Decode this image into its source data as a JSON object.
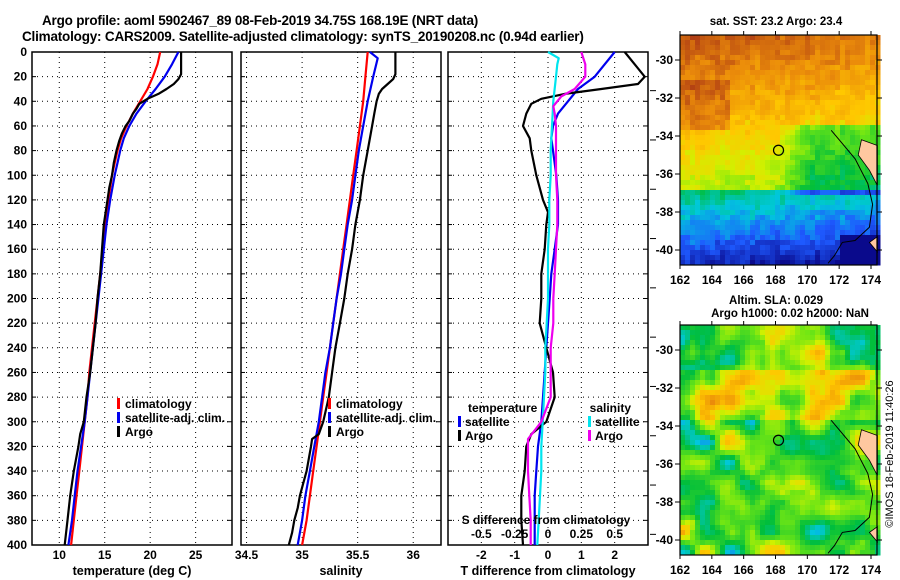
{
  "header": {
    "title_line1": "Argo profile: aoml 5902467_89 08-Feb-2019 34.75S 168.19E (NRT data)",
    "title_line2": "Climatology: CARS2009. Satellite-adjusted climatology: synTS_20190208.nc (0.94d earlier)"
  },
  "colors": {
    "climatology": "#ff0000",
    "satellite": "#0000ee",
    "argo": "#000000",
    "sal_satellite": "#00e5ee",
    "sal_argo": "#ee00ee",
    "land": "#ffc8a0"
  },
  "chart_data": [
    {
      "type": "line",
      "id": "temperature",
      "xlabel": "temperature (deg C)",
      "ylabel": "",
      "xlim": [
        7,
        29
      ],
      "ylim": [
        400,
        0
      ],
      "xticks": [
        10,
        15,
        20,
        25
      ],
      "yticks": [
        0,
        20,
        40,
        60,
        80,
        100,
        120,
        140,
        160,
        180,
        200,
        220,
        240,
        260,
        280,
        300,
        320,
        340,
        360,
        380,
        400
      ],
      "grid": true,
      "legend": {
        "placement": "middle-right",
        "entries": [
          "climatology",
          "satellite-adj. clim.",
          "Argo"
        ]
      },
      "series": [
        {
          "name": "climatology",
          "color_key": "climatology",
          "pressure": [
            0,
            10,
            20,
            30,
            40,
            50,
            60,
            70,
            80,
            90,
            100,
            120,
            140,
            160,
            180,
            200,
            220,
            240,
            260,
            280,
            300,
            320,
            340,
            360,
            380,
            400
          ],
          "values": [
            21.1,
            20.8,
            20.3,
            19.7,
            18.9,
            18.1,
            17.4,
            16.8,
            16.4,
            16.1,
            15.8,
            15.4,
            15.0,
            14.8,
            14.5,
            14.2,
            13.9,
            13.6,
            13.3,
            13.1,
            12.8,
            12.5,
            12.2,
            11.9,
            11.6,
            11.3
          ]
        },
        {
          "name": "satellite-adj. clim.",
          "color_key": "satellite",
          "pressure": [
            0,
            10,
            20,
            30,
            40,
            50,
            60,
            70,
            80,
            90,
            100,
            120,
            140,
            160,
            180,
            200,
            220,
            240,
            260,
            280,
            300,
            320,
            340,
            360,
            380,
            400
          ],
          "values": [
            23.1,
            22.4,
            21.6,
            20.6,
            19.5,
            18.5,
            17.7,
            17.1,
            16.7,
            16.4,
            16.1,
            15.6,
            15.2,
            14.9,
            14.6,
            14.3,
            14.0,
            13.7,
            13.4,
            13.1,
            12.8,
            12.4,
            12.0,
            11.7,
            11.4,
            11.0
          ]
        },
        {
          "name": "Argo",
          "color_key": "argo",
          "pressure": [
            0,
            10,
            18,
            22,
            26,
            30,
            34,
            38,
            42,
            46,
            50,
            56,
            60,
            66,
            72,
            80,
            90,
            100,
            110,
            120,
            140,
            160,
            180,
            200,
            220,
            240,
            260,
            280,
            300,
            310,
            320,
            340,
            360,
            380,
            400
          ],
          "values": [
            23.4,
            23.4,
            23.4,
            23.1,
            22.6,
            21.8,
            20.9,
            19.7,
            18.8,
            18.5,
            18.1,
            17.7,
            17.3,
            16.9,
            16.6,
            16.3,
            16.0,
            15.8,
            15.5,
            15.3,
            14.9,
            14.7,
            14.5,
            14.2,
            14.0,
            13.7,
            13.4,
            13.0,
            12.7,
            12.3,
            12.1,
            11.6,
            11.2,
            10.9,
            10.6
          ]
        }
      ]
    },
    {
      "type": "line",
      "id": "salinity",
      "xlabel": "salinity",
      "ylabel": "",
      "xlim": [
        34.45,
        36.25
      ],
      "ylim": [
        400,
        0
      ],
      "xticks": [
        34.5,
        35,
        35.5,
        36
      ],
      "xtick_labels": [
        "34.5",
        "35",
        "35.5",
        "36"
      ],
      "grid": true,
      "legend": {
        "placement": "middle-right",
        "entries": [
          "climatology",
          "satellite-adj. clim.",
          "Argo"
        ]
      },
      "series": [
        {
          "name": "climatology",
          "color_key": "climatology",
          "pressure": [
            0,
            20,
            40,
            60,
            80,
            100,
            120,
            140,
            160,
            180,
            200,
            220,
            240,
            260,
            280,
            300,
            320,
            340,
            360,
            380,
            400
          ],
          "values": [
            35.59,
            35.57,
            35.55,
            35.52,
            35.49,
            35.46,
            35.43,
            35.4,
            35.37,
            35.34,
            35.31,
            35.28,
            35.25,
            35.22,
            35.19,
            35.16,
            35.13,
            35.1,
            35.07,
            35.04,
            35.0
          ]
        },
        {
          "name": "satellite-adj. clim.",
          "color_key": "satellite",
          "pressure": [
            0,
            5,
            20,
            40,
            60,
            80,
            100,
            120,
            140,
            160,
            180,
            200,
            220,
            240,
            260,
            280,
            300,
            320,
            340,
            360,
            380,
            400
          ],
          "values": [
            35.61,
            35.68,
            35.64,
            35.59,
            35.55,
            35.51,
            35.48,
            35.45,
            35.41,
            35.38,
            35.35,
            35.31,
            35.28,
            35.25,
            35.21,
            35.18,
            35.15,
            35.11,
            35.07,
            35.03,
            35.0,
            34.96
          ]
        },
        {
          "name": "Argo",
          "color_key": "argo",
          "pressure": [
            0,
            10,
            18,
            22,
            26,
            30,
            34,
            40,
            50,
            60,
            80,
            100,
            120,
            140,
            160,
            180,
            200,
            220,
            240,
            260,
            280,
            300,
            310,
            314,
            320,
            330,
            340,
            350,
            360,
            370,
            380,
            390,
            400
          ],
          "values": [
            35.84,
            35.84,
            35.84,
            35.82,
            35.77,
            35.72,
            35.69,
            35.67,
            35.65,
            35.63,
            35.59,
            35.55,
            35.52,
            35.48,
            35.45,
            35.41,
            35.38,
            35.34,
            35.3,
            35.27,
            35.24,
            35.19,
            35.15,
            35.09,
            35.08,
            35.06,
            35.04,
            35.01,
            34.98,
            34.96,
            34.93,
            34.91,
            34.88
          ]
        }
      ]
    },
    {
      "type": "line",
      "id": "difference",
      "xlabel": "T difference from climatology",
      "xlabel2": "S difference from climatology",
      "xlim": [
        -3,
        3
      ],
      "xlim2": [
        -0.75,
        0.75
      ],
      "ylim": [
        400,
        0
      ],
      "xticks": [
        -2,
        -1,
        0,
        1,
        2
      ],
      "xticks2": [
        -0.5,
        -0.25,
        0,
        0.25,
        0.5
      ],
      "xtick2_labels": [
        "-0.5",
        "-0.25",
        "0",
        "0.25",
        "0.5"
      ],
      "grid": true,
      "legend": {
        "placement": "middle",
        "temperature_title": "temperature",
        "salinity_title": "salinity",
        "entries": [
          "satellite",
          "Argo",
          "satellite",
          "Argo"
        ]
      },
      "series": [
        {
          "name": "T satellite",
          "color_key": "satellite",
          "axis": "T",
          "pressure": [
            0,
            10,
            20,
            30,
            40,
            50,
            60,
            70,
            80,
            100,
            120,
            140,
            160,
            180,
            200,
            220,
            240,
            260,
            280,
            300,
            320,
            340,
            360,
            380,
            400
          ],
          "values": [
            2.0,
            1.7,
            1.4,
            0.9,
            0.6,
            0.3,
            0.15,
            0.1,
            0.15,
            0.25,
            0.3,
            0.3,
            0.2,
            0.1,
            0.05,
            0.0,
            -0.05,
            -0.1,
            -0.15,
            -0.2,
            -0.3,
            -0.35,
            -0.4,
            -0.4,
            -0.4
          ]
        },
        {
          "name": "T Argo",
          "color_key": "argo",
          "axis": "T",
          "pressure": [
            0,
            10,
            20,
            26,
            30,
            34,
            38,
            42,
            50,
            60,
            70,
            80,
            100,
            120,
            130,
            140,
            160,
            180,
            200,
            220,
            240,
            260,
            280,
            300,
            310,
            320,
            340,
            360,
            380,
            400
          ],
          "values": [
            2.3,
            2.6,
            2.9,
            2.7,
            1.6,
            0.5,
            -0.2,
            -0.5,
            -0.65,
            -0.75,
            -0.55,
            -0.5,
            -0.35,
            -0.15,
            0.0,
            -0.05,
            -0.1,
            -0.2,
            -0.2,
            -0.25,
            -0.05,
            0.15,
            0.2,
            -0.05,
            -0.5,
            -0.65,
            -0.7,
            -0.8,
            -0.8,
            -0.75
          ]
        },
        {
          "name": "S satellite",
          "color_key": "sal_satellite",
          "axis": "S",
          "pressure": [
            0,
            5,
            10,
            20,
            40,
            60,
            80,
            100,
            120,
            140,
            160,
            180,
            200,
            220,
            240,
            260,
            280,
            300,
            320,
            340,
            360,
            380,
            400
          ],
          "values": [
            0.0,
            0.08,
            0.07,
            0.06,
            0.04,
            0.03,
            0.02,
            0.02,
            0.01,
            0.01,
            0.0,
            0.0,
            0.0,
            -0.01,
            -0.02,
            -0.02,
            -0.03,
            -0.04,
            -0.05,
            -0.05,
            -0.06,
            -0.07,
            -0.08
          ]
        },
        {
          "name": "S Argo",
          "color_key": "sal_argo",
          "axis": "S",
          "pressure": [
            0,
            10,
            20,
            30,
            36,
            44,
            50,
            60,
            80,
            100,
            120,
            140,
            160,
            180,
            200,
            220,
            240,
            260,
            280,
            300,
            314,
            320,
            340,
            360,
            380,
            400
          ],
          "values": [
            0.25,
            0.28,
            0.28,
            0.2,
            0.1,
            0.04,
            0.05,
            0.06,
            0.06,
            0.06,
            0.07,
            0.07,
            0.06,
            0.05,
            0.04,
            0.04,
            0.02,
            0.02,
            0.02,
            -0.05,
            -0.15,
            -0.15,
            -0.15,
            -0.14,
            -0.13,
            -0.13
          ]
        }
      ]
    },
    {
      "type": "heatmap",
      "id": "sst-map",
      "title": "sat. SST: 23.2 Argo: 23.4",
      "xlim": [
        162,
        174.4
      ],
      "ylim": [
        -40.7,
        -28.7
      ],
      "xticks": [
        162,
        164,
        166,
        168,
        170,
        172,
        174
      ],
      "yticks": [
        -30,
        -32,
        -34,
        -36,
        -38,
        -40
      ],
      "marker": {
        "lon": 168.19,
        "lat": -34.75
      },
      "description": "warm orange in north-west, yellow mid, green/blue in south and near coast"
    },
    {
      "type": "heatmap",
      "id": "sla-map",
      "title": "Altim. SLA: 0.029",
      "subtitle": "Argo h1000: 0.02 h2000: NaN",
      "xlim": [
        162,
        174.4
      ],
      "ylim": [
        -40.7,
        -28.7
      ],
      "xticks": [
        162,
        164,
        166,
        168,
        170,
        172,
        174
      ],
      "yticks": [
        -30,
        -32,
        -34,
        -36,
        -38,
        -40
      ],
      "marker": {
        "lon": 168.19,
        "lat": -34.75
      },
      "description": "mottled green/yellow field with orange highs near -31 to -33"
    }
  ],
  "footer": {
    "stamp": "©IMOS 18-Feb-2019 11:40:26"
  }
}
